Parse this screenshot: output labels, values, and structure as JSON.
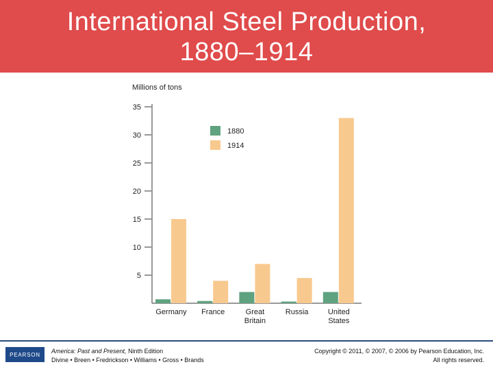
{
  "slide": {
    "title_line1": "International Steel Production,",
    "title_line2": "1880–1914"
  },
  "colors": {
    "banner": "#e04b4b",
    "series_1880": "#5fa27f",
    "series_1914": "#f8c98f",
    "axis": "#333333"
  },
  "chart_data": {
    "type": "bar",
    "title": "",
    "ylabel": "Millions of tons",
    "xlabel": "",
    "ylim": [
      0,
      35
    ],
    "yticks": [
      5,
      10,
      15,
      20,
      25,
      30,
      35
    ],
    "categories": [
      [
        "Germany"
      ],
      [
        "France"
      ],
      [
        "Great",
        "Britain"
      ],
      [
        "Russia"
      ],
      [
        "United",
        "States"
      ]
    ],
    "series": [
      {
        "name": "1880",
        "color": "#5fa27f",
        "values": [
          0.7,
          0.4,
          2.0,
          0.3,
          2.0
        ]
      },
      {
        "name": "1914",
        "color": "#f8c98f",
        "values": [
          15.0,
          4.0,
          7.0,
          4.5,
          33.0
        ]
      }
    ],
    "legend_position": "top-center"
  },
  "footer": {
    "book_title": "America: Past and Present,",
    "edition": " Ninth Edition",
    "authors": "Divine • Breen • Fredrickson • Williams • Gross • Brands",
    "copyright": "Copyright © 2011, © 2007, © 2006 by Pearson Education, Inc.",
    "rights": "All rights reserved.",
    "logo_text": "PEARSON"
  }
}
